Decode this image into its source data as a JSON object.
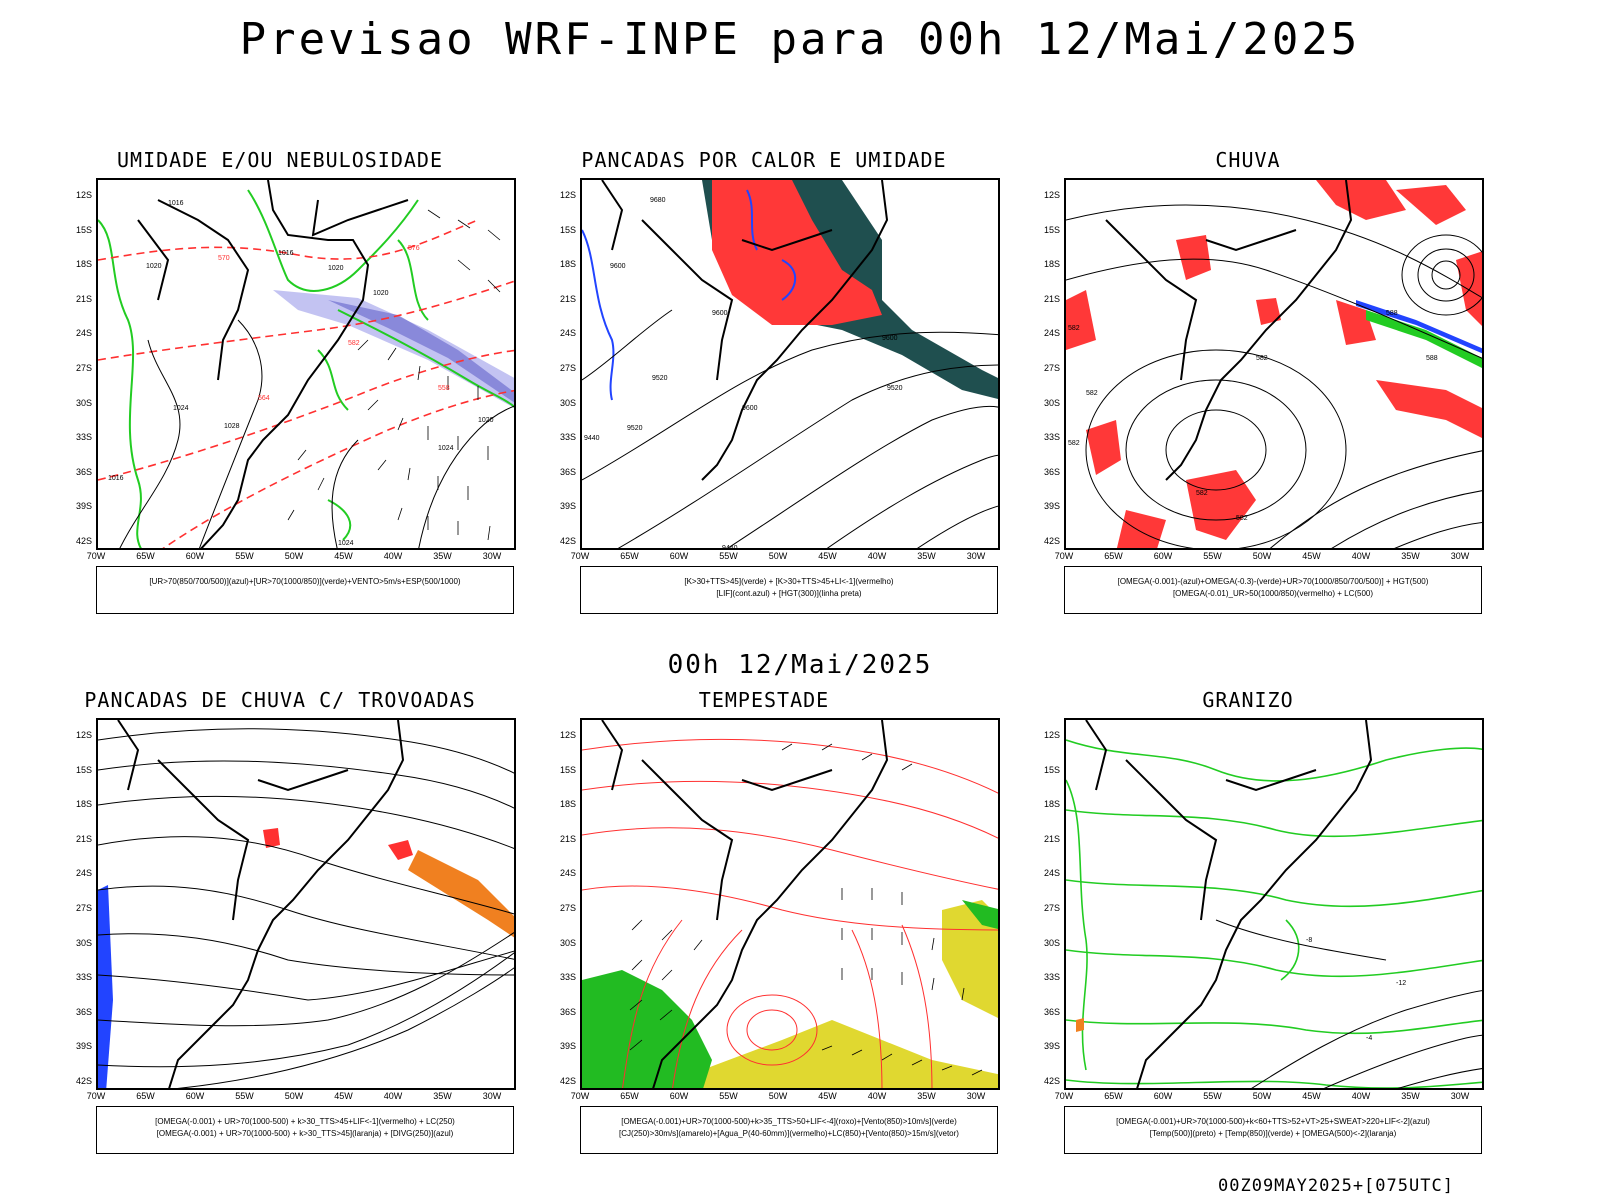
{
  "title": "Previsao WRF-INPE  para 00h 12/Mai/2025",
  "mid_title": "00h 12/Mai/2025",
  "footer_stamp": "00Z09MAY2025+[075UTC]",
  "lat_labels": [
    "12S",
    "15S",
    "18S",
    "21S",
    "24S",
    "27S",
    "30S",
    "33S",
    "36S",
    "39S",
    "42S"
  ],
  "lon_labels": [
    "70W",
    "65W",
    "60W",
    "55W",
    "50W",
    "45W",
    "40W",
    "35W",
    "30W"
  ],
  "panels": [
    {
      "id": "umidade",
      "title": "UMIDADE E/OU NEBULOSIDADE",
      "legend_lines": [
        "[UR>70(850/700/500)](azul)+[UR>70(1000/850)](verde)+VENTO>5m/s+ESP(500/1000)"
      ],
      "contour_labels": [
        "1016",
        "1020",
        "1024",
        "1028",
        "1020",
        "1024",
        "570",
        "576",
        "582",
        "564",
        "558",
        "1016",
        "1020",
        "1024",
        "1016",
        "1020"
      ]
    },
    {
      "id": "pancadas-calor",
      "title": "PANCADAS POR CALOR E UMIDADE",
      "legend_lines": [
        "[K>30+TTS>45](verde) + [K>30+TTS>45+LI<-1](vermelho)",
        "[LIF](cont.azul) + [HGT(300)](linha preta)"
      ],
      "contour_labels": [
        "9680",
        "9600",
        "9600",
        "9520",
        "9600",
        "9520",
        "9440",
        "9600",
        "9520",
        "9440"
      ]
    },
    {
      "id": "chuva",
      "title": "CHUVA",
      "legend_lines": [
        "[OMEGA(-0.001)-(azul)+OMEGA(-0.3)-(verde)+UR>70(1000/850/700/500)] + HGT(500)",
        "[OMEGA(-0.01)_UR>50(1000/850)(vermelho) + LC(500)"
      ],
      "contour_labels": [
        "582",
        "588",
        "582",
        "582",
        "582",
        "582",
        "582",
        "588"
      ]
    },
    {
      "id": "pancadas-trovoadas",
      "title": "PANCADAS DE CHUVA C/ TROVOADAS",
      "legend_lines": [
        "[OMEGA(-0.001) + UR>70(1000-500) + k>30_TTS>45+LIF<-1](vermelho) + LC(250)",
        "[OMEGA(-0.001) + UR>70(1000-500) + k>30_TTS>45](laranja) + [DIVG(250)](azul)"
      ],
      "contour_labels": []
    },
    {
      "id": "tempestade",
      "title": "TEMPESTADE",
      "legend_lines": [
        "[OMEGA(-0.001)+UR>70(1000-500)+k>35_TTS>50+LIF<-4](roxo)+[Vento(850)>10m/s](verde)",
        "[CJ(250)>30m/s](amarelo)+[Agua_P(40-60mm)](vermelho)+LC(850)+[Vento(850)>15m/s](vetor)"
      ],
      "contour_labels": []
    },
    {
      "id": "granizo",
      "title": "GRANIZO",
      "legend_lines": [
        "[OMEGA(-0.001)+UR>70(1000-500)+k<60+TTS>52+VT>25+SWEAT>220+LIF<-2](azul)",
        "[Temp(500)](preto) + [Temp(850)](verde) + [OMEGA(500)<-2](laranja)"
      ],
      "contour_labels": [
        "-12",
        "-8",
        "-4"
      ]
    }
  ],
  "colors": {
    "coast": "#000000",
    "red": "#ff3030",
    "green": "#22cc22",
    "blue": "#2244ff",
    "purple": "#9090e0",
    "darkteal": "#1f4f4f",
    "yellow": "#e0d830",
    "orange": "#f08020",
    "darkgreen": "#11aa11"
  }
}
